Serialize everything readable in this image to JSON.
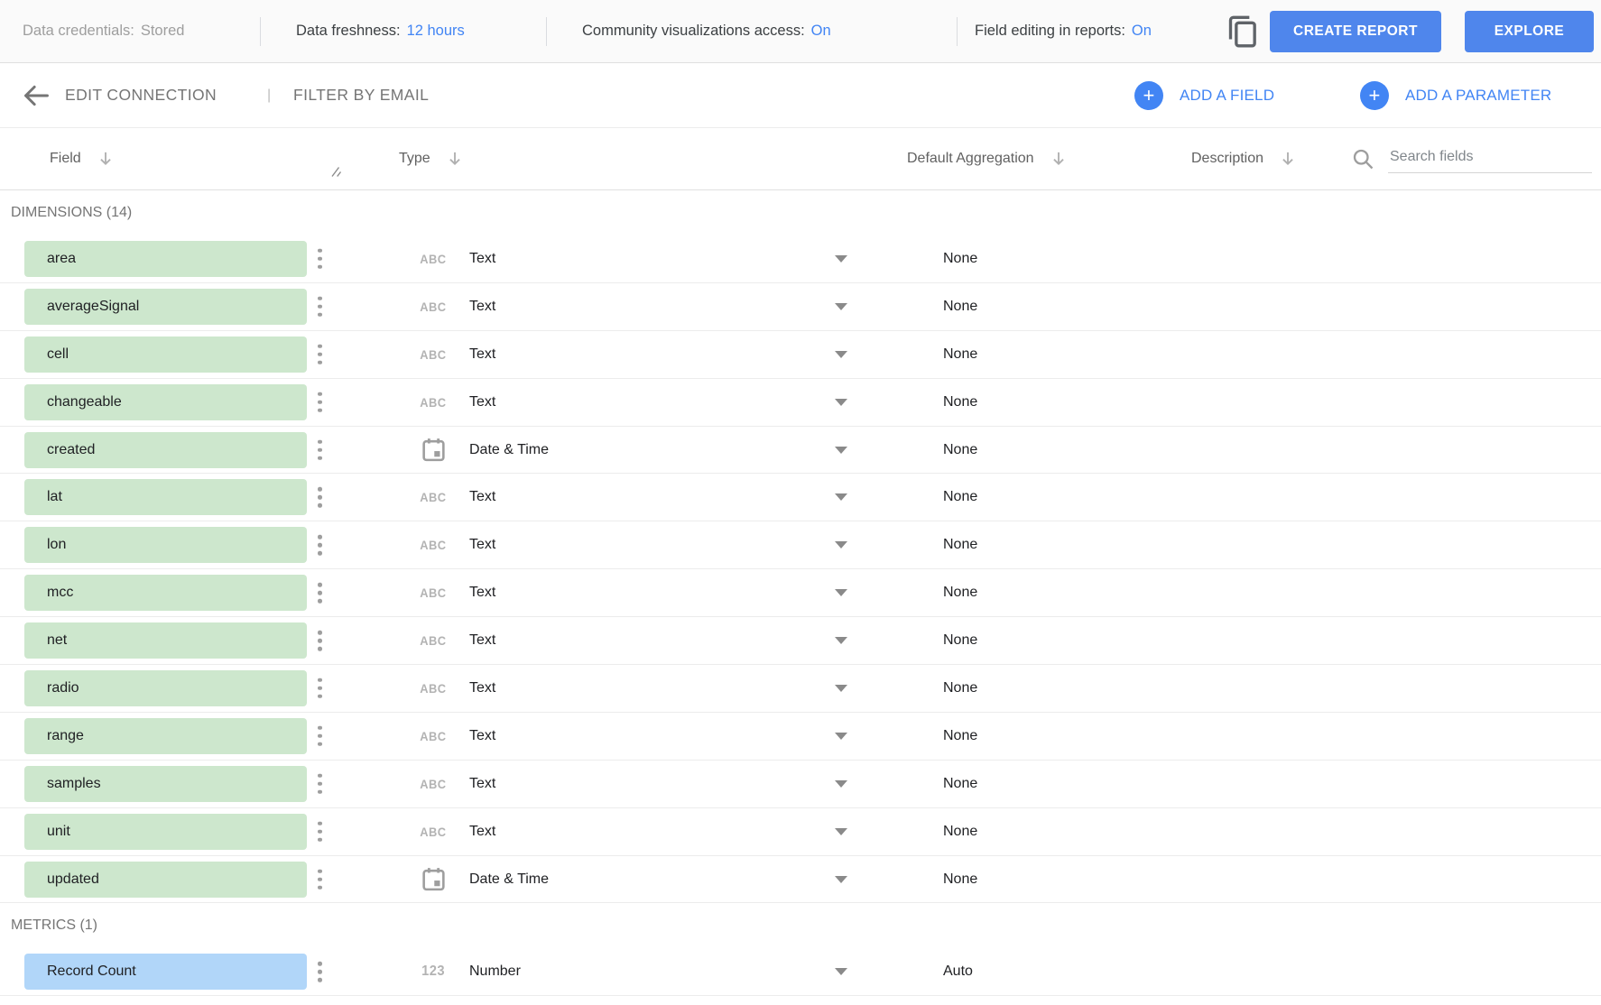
{
  "topbar": {
    "credentials": {
      "label": "Data credentials:",
      "value": "Stored"
    },
    "freshness": {
      "label": "Data freshness:",
      "value": "12 hours"
    },
    "community": {
      "label": "Community visualizations access:",
      "value": "On"
    },
    "field_editing": {
      "label": "Field editing in reports:",
      "value": "On"
    },
    "copy_icon": "copy-icon",
    "create_report": "CREATE REPORT",
    "explore": "EXPLORE"
  },
  "toolbar": {
    "back_icon": "back-arrow-icon",
    "edit_connection": "EDIT CONNECTION",
    "divider": "|",
    "filter_by_email": "FILTER BY EMAIL",
    "add_field": "ADD A FIELD",
    "add_parameter": "ADD A PARAMETER",
    "plus_icon": "plus-icon"
  },
  "table": {
    "headers": {
      "field": "Field",
      "type": "Type",
      "aggregation": "Default Aggregation",
      "description": "Description"
    },
    "sort_icon": "sort-down-arrow-icon",
    "search": {
      "icon": "search-icon",
      "placeholder": "Search fields"
    },
    "sections": [
      {
        "label": "DIMENSIONS (14)",
        "kind": "dimension",
        "rows": [
          {
            "name": "area",
            "type": "Text",
            "type_icon": "abc-text-icon",
            "aggregation": "None"
          },
          {
            "name": "averageSignal",
            "type": "Text",
            "type_icon": "abc-text-icon",
            "aggregation": "None"
          },
          {
            "name": "cell",
            "type": "Text",
            "type_icon": "abc-text-icon",
            "aggregation": "None"
          },
          {
            "name": "changeable",
            "type": "Text",
            "type_icon": "abc-text-icon",
            "aggregation": "None"
          },
          {
            "name": "created",
            "type": "Date & Time",
            "type_icon": "calendar-icon",
            "aggregation": "None"
          },
          {
            "name": "lat",
            "type": "Text",
            "type_icon": "abc-text-icon",
            "aggregation": "None"
          },
          {
            "name": "lon",
            "type": "Text",
            "type_icon": "abc-text-icon",
            "aggregation": "None"
          },
          {
            "name": "mcc",
            "type": "Text",
            "type_icon": "abc-text-icon",
            "aggregation": "None"
          },
          {
            "name": "net",
            "type": "Text",
            "type_icon": "abc-text-icon",
            "aggregation": "None"
          },
          {
            "name": "radio",
            "type": "Text",
            "type_icon": "abc-text-icon",
            "aggregation": "None"
          },
          {
            "name": "range",
            "type": "Text",
            "type_icon": "abc-text-icon",
            "aggregation": "None"
          },
          {
            "name": "samples",
            "type": "Text",
            "type_icon": "abc-text-icon",
            "aggregation": "None"
          },
          {
            "name": "unit",
            "type": "Text",
            "type_icon": "abc-text-icon",
            "aggregation": "None"
          },
          {
            "name": "updated",
            "type": "Date & Time",
            "type_icon": "calendar-icon",
            "aggregation": "None"
          }
        ]
      },
      {
        "label": "METRICS (1)",
        "kind": "metric",
        "rows": [
          {
            "name": "Record Count",
            "type": "Number",
            "type_icon": "numeric-123-icon",
            "aggregation": "Auto"
          }
        ]
      }
    ]
  },
  "colors": {
    "accent_blue": "#4285f4",
    "button_blue": "#4f86ec",
    "dimension_chip_green": "#cde7cd",
    "metric_chip_blue": "#b1d6f9"
  }
}
